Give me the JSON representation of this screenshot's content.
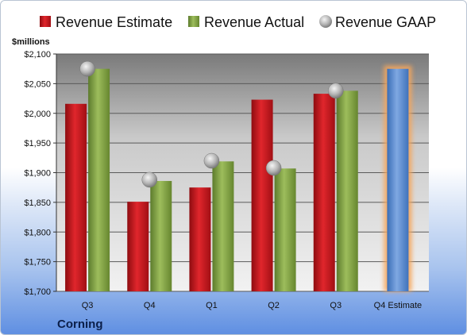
{
  "company": "Corning",
  "colors": {
    "estimate": "#c0141b",
    "actual": "#7ea142",
    "gaap": "#a8a8a8",
    "forecast": "#4f83cc",
    "forecast_glow": "#f5a65b"
  },
  "legend": {
    "estimate": "Revenue Estimate",
    "actual": "Revenue Actual",
    "gaap": "Revenue GAAP"
  },
  "chart_data": {
    "type": "bar",
    "ylabel": "$millions",
    "ylim": [
      1700,
      2100
    ],
    "yticks": [
      1700,
      1750,
      1800,
      1850,
      1900,
      1950,
      2000,
      2050,
      2100
    ],
    "ytick_labels": [
      "$1,700",
      "$1,750",
      "$1,800",
      "$1,850",
      "$1,900",
      "$1,950",
      "$2,000",
      "$2,050",
      "$2,100"
    ],
    "categories": [
      "Q3",
      "Q4",
      "Q1",
      "Q2",
      "Q3",
      "Q4 Estimate"
    ],
    "series": [
      {
        "name": "Revenue Estimate",
        "values": [
          2016,
          1851,
          1875,
          2023,
          2033,
          null
        ]
      },
      {
        "name": "Revenue Actual",
        "values": [
          2075,
          1886,
          1919,
          1907,
          2038,
          null
        ]
      },
      {
        "name": "Revenue GAAP",
        "values": [
          2075,
          1888,
          1920,
          1908,
          2038,
          null
        ]
      }
    ],
    "forecast": {
      "category": "Q4 Estimate",
      "value": 2075
    },
    "grid": true
  }
}
